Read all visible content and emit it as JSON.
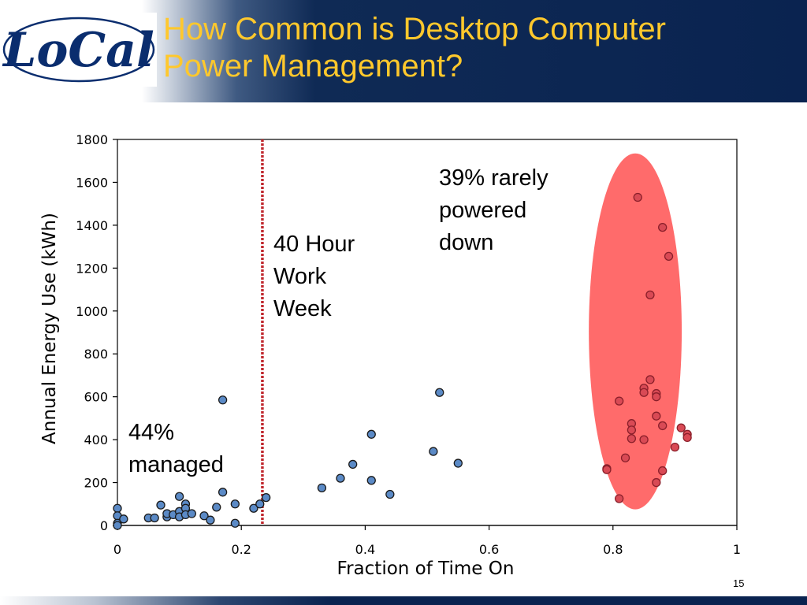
{
  "slide": {
    "title_lines": [
      "How Common is Desktop Computer",
      "Power Management?"
    ],
    "logo_text": "LoCal",
    "page_number": "15"
  },
  "annotations": {
    "work_week": [
      "40 Hour",
      "Work",
      "Week"
    ],
    "rarely_powered_down": [
      "39% rarely",
      "powered",
      "down"
    ],
    "managed": [
      "44%",
      "managed"
    ]
  },
  "colors": {
    "title": "#ffc82c",
    "header_bg": "#0a2350",
    "point_fill": "#5b8ac6",
    "point_stroke": "#1a1a1a",
    "highlight_fill": "#ff6b6b",
    "highlight_point": "#d94a55",
    "work_week_line": "#c0282e"
  },
  "chart_data": {
    "type": "scatter",
    "xlabel": "Fraction of Time On",
    "ylabel": "Annual Energy Use (kWh)",
    "xlim": [
      0,
      1
    ],
    "ylim": [
      0,
      1800
    ],
    "xticks": [
      0,
      0.2,
      0.4,
      0.6,
      0.8,
      1
    ],
    "xtick_labels": [
      "0",
      "0.2",
      "0.4",
      "0.6",
      "0.8",
      "1"
    ],
    "yticks": [
      0,
      200,
      400,
      600,
      800,
      1000,
      1200,
      1400,
      1600,
      1800
    ],
    "ytick_labels": [
      "0",
      "200",
      "400",
      "600",
      "800",
      "1000",
      "1200",
      "1400",
      "1600",
      "1800"
    ],
    "grid": false,
    "reference_line_x": 0.234,
    "highlight_ellipse": {
      "x_center": 0.836,
      "y_center": 905,
      "x_half_width": 0.075,
      "y_half_height": 830
    },
    "points": [
      [
        0.0,
        80
      ],
      [
        0.0,
        45
      ],
      [
        0.0,
        10
      ],
      [
        0.0,
        0
      ],
      [
        0.01,
        30
      ],
      [
        0.05,
        35
      ],
      [
        0.06,
        35
      ],
      [
        0.07,
        95
      ],
      [
        0.08,
        40
      ],
      [
        0.08,
        55
      ],
      [
        0.09,
        50
      ],
      [
        0.1,
        135
      ],
      [
        0.1,
        65
      ],
      [
        0.1,
        40
      ],
      [
        0.11,
        100
      ],
      [
        0.11,
        80
      ],
      [
        0.11,
        50
      ],
      [
        0.12,
        55
      ],
      [
        0.14,
        45
      ],
      [
        0.15,
        25
      ],
      [
        0.16,
        85
      ],
      [
        0.17,
        585
      ],
      [
        0.17,
        155
      ],
      [
        0.19,
        100
      ],
      [
        0.19,
        10
      ],
      [
        0.22,
        80
      ],
      [
        0.23,
        100
      ],
      [
        0.24,
        130
      ],
      [
        0.33,
        175
      ],
      [
        0.36,
        220
      ],
      [
        0.38,
        285
      ],
      [
        0.41,
        425
      ],
      [
        0.41,
        210
      ],
      [
        0.44,
        145
      ],
      [
        0.51,
        345
      ],
      [
        0.52,
        620
      ],
      [
        0.55,
        290
      ]
    ],
    "highlight_points": [
      [
        0.84,
        1530
      ],
      [
        0.88,
        1390
      ],
      [
        0.89,
        1255
      ],
      [
        0.86,
        1075
      ],
      [
        0.86,
        680
      ],
      [
        0.85,
        640
      ],
      [
        0.85,
        620
      ],
      [
        0.87,
        615
      ],
      [
        0.87,
        600
      ],
      [
        0.81,
        580
      ],
      [
        0.87,
        510
      ],
      [
        0.83,
        475
      ],
      [
        0.88,
        465
      ],
      [
        0.91,
        455
      ],
      [
        0.83,
        445
      ],
      [
        0.92,
        425
      ],
      [
        0.92,
        410
      ],
      [
        0.83,
        405
      ],
      [
        0.85,
        400
      ],
      [
        0.9,
        365
      ],
      [
        0.82,
        315
      ],
      [
        0.79,
        265
      ],
      [
        0.79,
        260
      ],
      [
        0.88,
        255
      ],
      [
        0.87,
        200
      ],
      [
        0.81,
        125
      ]
    ]
  }
}
